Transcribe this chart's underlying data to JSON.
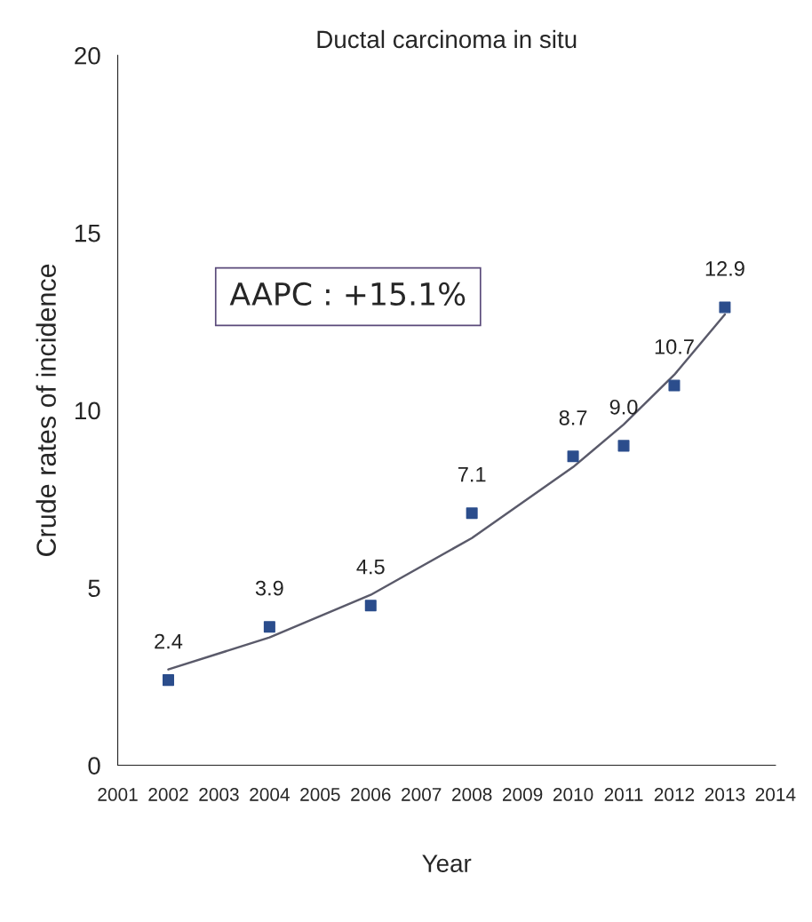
{
  "chart_data": {
    "type": "scatter",
    "title": "Ductal carcinoma in situ",
    "xlabel": "Year",
    "ylabel": "Crude rates of incidence",
    "categories": [
      "2001",
      "2002",
      "2003",
      "2004",
      "2005",
      "2006",
      "2007",
      "2008",
      "2009",
      "2010",
      "2011",
      "2012",
      "2013",
      "2014"
    ],
    "series": [
      {
        "color": "#2b4d8c",
        "marker": "square",
        "values": [
          null,
          2.4,
          null,
          3.9,
          null,
          4.5,
          null,
          7.1,
          null,
          8.7,
          9.0,
          10.7,
          12.9,
          null
        ],
        "value_labels": [
          null,
          "2.4",
          null,
          "3.9",
          null,
          "4.5",
          null,
          "7.1",
          null,
          "8.7",
          "9.0",
          "10.7",
          "12.9",
          null
        ]
      },
      {
        "type": "line",
        "color": "#5a5a6a",
        "line_style": "solid",
        "values": [
          null,
          2.7,
          null,
          3.6,
          null,
          4.8,
          null,
          6.4,
          null,
          8.4,
          9.6,
          11.0,
          12.7,
          null
        ]
      }
    ],
    "ylim": [
      0,
      20
    ],
    "yticks": [
      0,
      5,
      10,
      15,
      20
    ],
    "grid": false,
    "legend": false,
    "annotations": [
      "AAPC : +15.1%"
    ]
  }
}
